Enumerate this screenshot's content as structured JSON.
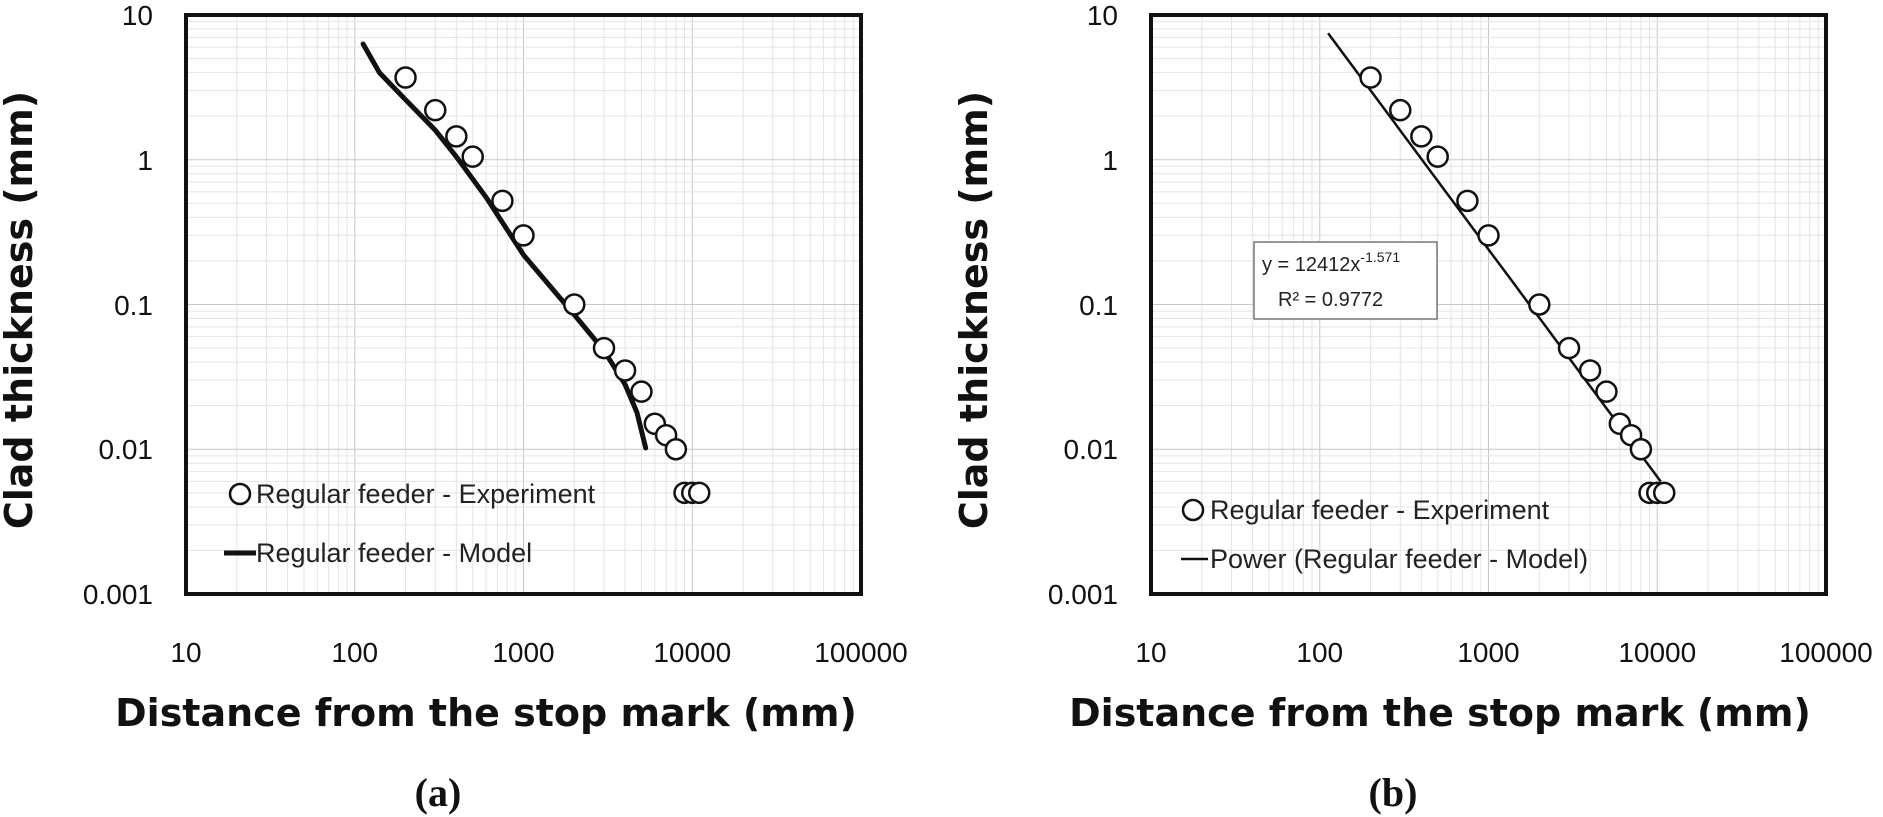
{
  "chart_data": [
    {
      "type": "scatter",
      "panel_label": "(a)",
      "xscale": "log",
      "yscale": "log",
      "xlim": [
        10,
        100000
      ],
      "ylim": [
        0.001,
        10
      ],
      "xticks": [
        "10",
        "100",
        "1000",
        "10000",
        "100000"
      ],
      "yticks": [
        "0.001",
        "0.01",
        "0.1",
        "1",
        "10"
      ],
      "xlabel": "Distance from the stop mark (mm)",
      "ylabel": "Clad thickness (mm)",
      "grid": true,
      "series": [
        {
          "name": "Regular feeder - Experiment",
          "kind": "markers",
          "x": [
            200,
            300,
            400,
            500,
            750,
            1000,
            2000,
            3000,
            4000,
            5000,
            6000,
            7000,
            8000,
            9000,
            10000,
            11000
          ],
          "y": [
            3.7,
            2.2,
            1.45,
            1.05,
            0.52,
            0.3,
            0.1,
            0.05,
            0.035,
            0.025,
            0.015,
            0.0125,
            0.01,
            0.005,
            0.005,
            0.005
          ]
        },
        {
          "name": "Regular feeder - Model",
          "kind": "line",
          "x": [
            112,
            140,
            200,
            300,
            400,
            600,
            1000,
            2000,
            3000,
            4000,
            4700,
            5300
          ],
          "y": [
            6.3,
            4.0,
            2.6,
            1.6,
            1.05,
            0.55,
            0.22,
            0.085,
            0.048,
            0.028,
            0.018,
            0.0102
          ]
        }
      ]
    },
    {
      "type": "scatter",
      "panel_label": "(b)",
      "xscale": "log",
      "yscale": "log",
      "xlim": [
        10,
        100000
      ],
      "ylim": [
        0.001,
        10
      ],
      "xticks": [
        "10",
        "100",
        "1000",
        "10000",
        "100000"
      ],
      "yticks": [
        "0.001",
        "0.01",
        "0.1",
        "1",
        "10"
      ],
      "xlabel": "Distance from the stop mark (mm)",
      "ylabel": "Clad thickness (mm)",
      "grid": true,
      "annotation": {
        "equation_base": "y = 12412x",
        "equation_exponent": "-1.571",
        "r_squared": "R² = 0.9772"
      },
      "series": [
        {
          "name": "Regular feeder - Experiment",
          "kind": "markers",
          "x": [
            200,
            300,
            400,
            500,
            750,
            1000,
            2000,
            3000,
            4000,
            5000,
            6000,
            7000,
            8000,
            9000,
            10000,
            11000
          ],
          "y": [
            3.7,
            2.2,
            1.45,
            1.05,
            0.52,
            0.3,
            0.1,
            0.05,
            0.035,
            0.025,
            0.015,
            0.0125,
            0.01,
            0.005,
            0.005,
            0.005
          ]
        },
        {
          "name": "Power (Regular feeder - Model)",
          "kind": "power-fit",
          "coefficient": 12412,
          "exponent": -1.571,
          "x_range": [
            112,
            10500
          ]
        }
      ]
    }
  ]
}
